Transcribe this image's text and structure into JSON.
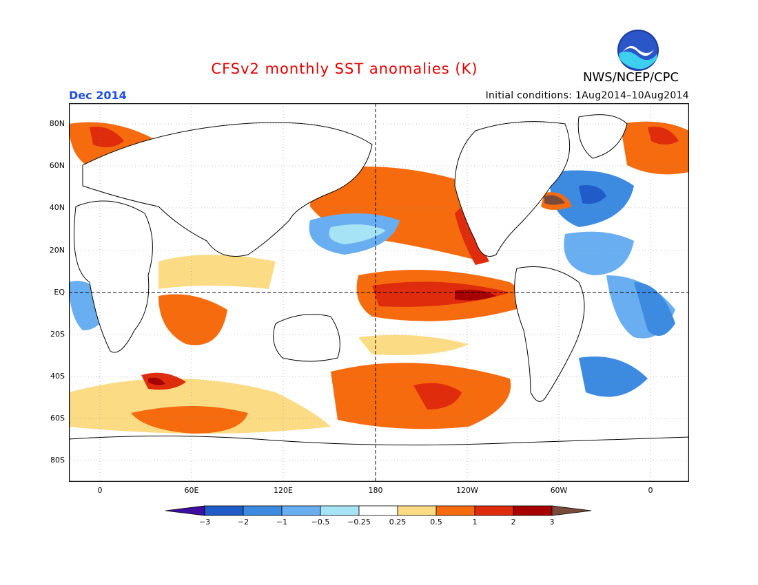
{
  "header": {
    "title": "CFSv2 monthly SST anomalies (K)",
    "organization": "NWS/NCEP/CPC",
    "logo_text": "NOAA",
    "valid_month": "Dec 2014",
    "initial_conditions": "Initial conditions: 1Aug2014–10Aug2014"
  },
  "axes": {
    "latitude_labels": [
      "80N",
      "60N",
      "40N",
      "20N",
      "EQ",
      "20S",
      "40S",
      "60S",
      "80S"
    ],
    "longitude_labels": [
      "0",
      "60E",
      "120E",
      "180",
      "120W",
      "60W",
      "0"
    ]
  },
  "colorbar": {
    "labels": [
      "−3",
      "−2",
      "−1",
      "−0.5",
      "−0.25",
      "0.25",
      "0.5",
      "1",
      "2",
      "3"
    ],
    "colors": [
      "#3d0ea1",
      "#1f5cc7",
      "#3d8be0",
      "#69aef0",
      "#a6e4f5",
      "#ffffff",
      "#fbdc84",
      "#f76b0f",
      "#de2c0c",
      "#a60000",
      "#7a4b3a"
    ]
  },
  "colors": {
    "title": "#e00000",
    "valid_month": "#1f4fe0"
  }
}
